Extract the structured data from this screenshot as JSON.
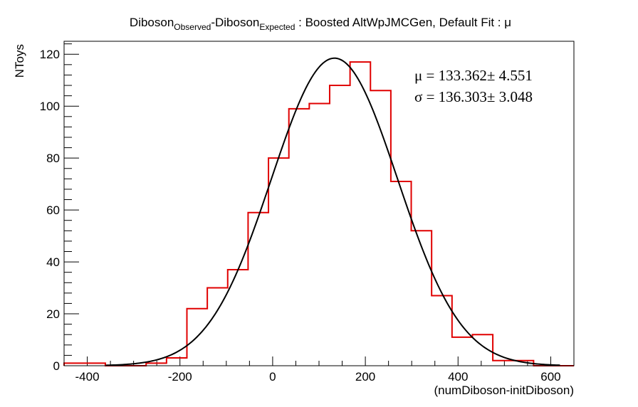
{
  "chart_data": {
    "type": "bar",
    "title": {
      "part1": "Diboson",
      "sub1": "Observed",
      "part2": "-Diboson",
      "sub2": "Expected",
      "part3": " : Boosted AltWpJMCGen, Default Fit : μ"
    },
    "xlabel": "(numDiboson-initDiboson)",
    "ylabel": "NToys",
    "xlim": [
      -450,
      650
    ],
    "ylim": [
      0,
      125
    ],
    "xticks": [
      -400,
      -200,
      0,
      200,
      400,
      600
    ],
    "yticks": [
      0,
      20,
      40,
      60,
      80,
      100,
      120
    ],
    "grid": false,
    "histogram": {
      "name": "toys",
      "color": "#e00000",
      "bin_edges": [
        -450,
        -405,
        -361,
        -317,
        -273,
        -229,
        -185,
        -141,
        -97,
        -53,
        -9,
        35,
        79,
        123,
        167,
        211,
        255,
        299,
        343,
        387,
        431,
        475,
        519,
        563,
        607,
        650
      ],
      "counts": [
        1,
        1,
        0,
        0,
        1,
        3,
        22,
        30,
        37,
        59,
        80,
        99,
        101,
        108,
        117,
        106,
        71,
        52,
        27,
        11,
        12,
        2,
        2,
        0,
        0
      ]
    },
    "fit": {
      "name": "gaussian fit",
      "color": "#000000",
      "function": "gaussian",
      "amplitude": 118.5,
      "mean": 133.362,
      "sigma": 136.303
    },
    "stats": {
      "mu_label": "μ = 133.362± 4.551",
      "sigma_label": "σ = 136.303± 3.048"
    }
  }
}
